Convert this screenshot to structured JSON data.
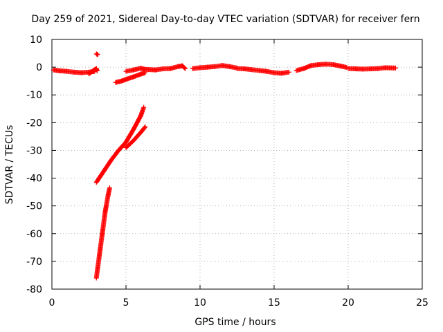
{
  "chart_data": {
    "type": "scatter",
    "title": "Day 259 of 2021, Sidereal Day-to-day VTEC variation (SDTVAR) for receiver fern",
    "xlabel": "GPS time / hours",
    "ylabel": "SDTVAR / TECUs",
    "xlim": [
      0,
      25
    ],
    "ylim": [
      -80,
      10
    ],
    "xticks": [
      0,
      5,
      10,
      15,
      20,
      25
    ],
    "yticks": [
      10,
      0,
      -10,
      -20,
      -30,
      -40,
      -50,
      -60,
      -70,
      -80
    ],
    "grid": true,
    "legend": "none",
    "marker": "plus",
    "color": "#ff0000",
    "segments": [
      {
        "points": [
          [
            0.1,
            -1.0
          ],
          [
            0.5,
            -1.3
          ],
          [
            1.0,
            -1.5
          ],
          [
            1.5,
            -1.8
          ],
          [
            2.0,
            -2.0
          ],
          [
            2.5,
            -1.8
          ],
          [
            2.9,
            -1.5
          ]
        ]
      },
      {
        "points": [
          [
            2.5,
            -2.4
          ],
          [
            2.8,
            -1.2
          ],
          [
            3.0,
            -0.5
          ],
          [
            3.05,
            -1.3
          ]
        ]
      },
      {
        "points": [
          [
            3.0,
            4.8
          ],
          [
            3.1,
            4.5
          ]
        ]
      },
      {
        "points": [
          [
            4.3,
            -5.5
          ],
          [
            4.7,
            -5.0
          ],
          [
            5.0,
            -4.4
          ],
          [
            5.5,
            -3.5
          ],
          [
            6.0,
            -2.5
          ],
          [
            6.3,
            -2.0
          ]
        ]
      },
      {
        "points": [
          [
            5.0,
            -1.5
          ],
          [
            5.5,
            -1.0
          ],
          [
            6.0,
            -0.4
          ],
          [
            6.3,
            -0.8
          ],
          [
            7.0,
            -1.0
          ],
          [
            7.5,
            -0.6
          ],
          [
            8.0,
            -0.5
          ],
          [
            8.5,
            0.2
          ],
          [
            8.8,
            0.5
          ],
          [
            9.0,
            -0.5
          ]
        ]
      },
      {
        "points": [
          [
            9.5,
            -0.5
          ],
          [
            10.0,
            -0.2
          ],
          [
            10.5,
            0.0
          ],
          [
            11.0,
            0.2
          ],
          [
            11.5,
            0.6
          ],
          [
            12.0,
            0.2
          ],
          [
            12.5,
            -0.3
          ]
        ]
      },
      {
        "points": [
          [
            12.5,
            -0.5
          ],
          [
            13.0,
            -0.6
          ],
          [
            13.5,
            -0.9
          ],
          [
            14.0,
            -1.2
          ],
          [
            14.5,
            -1.5
          ],
          [
            15.0,
            -2.0
          ],
          [
            15.5,
            -2.2
          ],
          [
            16.0,
            -1.8
          ]
        ]
      },
      {
        "points": [
          [
            16.5,
            -1.2
          ],
          [
            17.0,
            -0.5
          ],
          [
            17.5,
            0.6
          ],
          [
            18.0,
            0.9
          ],
          [
            18.5,
            1.1
          ],
          [
            19.0,
            0.9
          ],
          [
            19.5,
            0.4
          ],
          [
            19.9,
            -0.1
          ]
        ]
      },
      {
        "points": [
          [
            20.0,
            -0.5
          ],
          [
            20.5,
            -0.6
          ],
          [
            21.0,
            -0.7
          ],
          [
            21.5,
            -0.6
          ],
          [
            22.0,
            -0.5
          ],
          [
            22.5,
            -0.2
          ],
          [
            23.2,
            -0.3
          ]
        ]
      },
      {
        "points": [
          [
            3.0,
            -41.5
          ],
          [
            3.5,
            -37.5
          ],
          [
            4.0,
            -33.5
          ],
          [
            4.5,
            -30.0
          ],
          [
            5.0,
            -27.0
          ],
          [
            5.5,
            -22.5
          ],
          [
            6.0,
            -17.5
          ],
          [
            6.2,
            -14.5
          ]
        ]
      },
      {
        "points": [
          [
            5.0,
            -29.0
          ],
          [
            5.5,
            -26.5
          ],
          [
            6.0,
            -23.5
          ],
          [
            6.3,
            -21.5
          ]
        ]
      },
      {
        "points": [
          [
            3.0,
            -76.0
          ],
          [
            3.2,
            -68.0
          ],
          [
            3.4,
            -60.0
          ],
          [
            3.6,
            -52.0
          ],
          [
            3.8,
            -46.0
          ],
          [
            3.9,
            -43.5
          ]
        ]
      }
    ]
  }
}
